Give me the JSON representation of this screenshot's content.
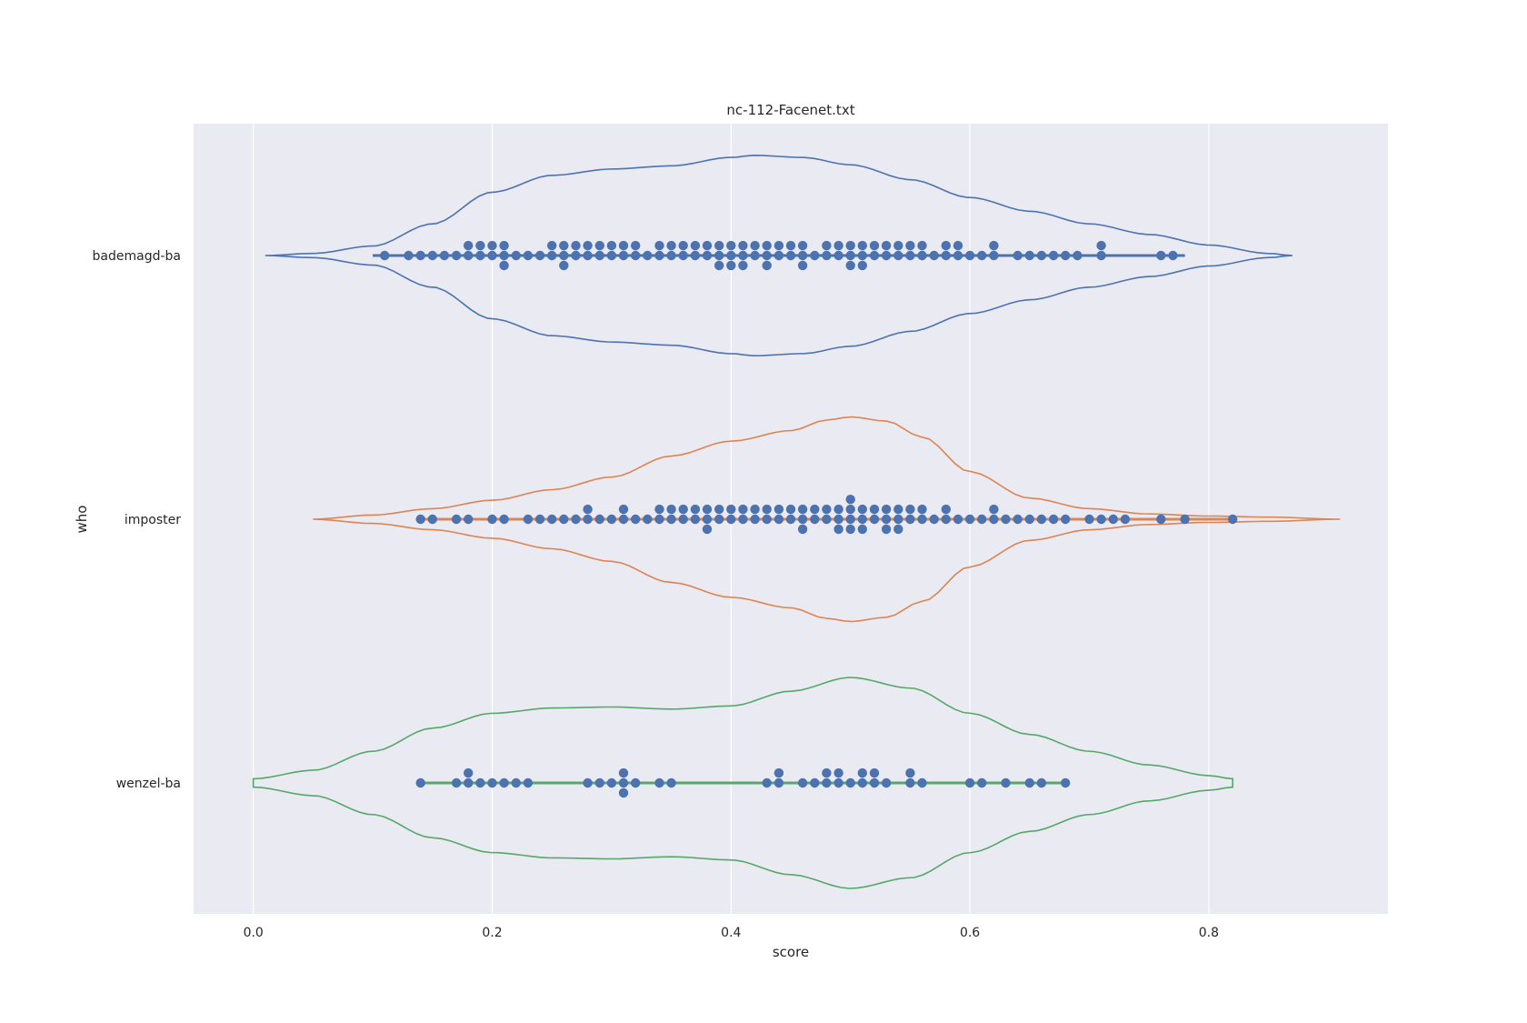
{
  "chart_data": {
    "type": "violin",
    "title": "nc-112-Facenet.txt",
    "xlabel": "score",
    "ylabel": "who",
    "xlim": [
      -0.05,
      0.95
    ],
    "xticks": [
      0.0,
      0.2,
      0.4,
      0.6,
      0.8
    ],
    "xtick_labels": [
      "0.0",
      "0.2",
      "0.4",
      "0.6",
      "0.8"
    ],
    "categories": [
      "bademagd-ba",
      "imposter",
      "wenzel-ba"
    ],
    "grid": true,
    "background": "#eaeaf2",
    "point_color": "#4c72b0",
    "series": [
      {
        "category": "bademagd-ba",
        "color": "#4c72b0",
        "extent": [
          0.01,
          0.87
        ],
        "half_width_profile": [
          [
            0.01,
            0.0
          ],
          [
            0.05,
            0.02
          ],
          [
            0.1,
            0.09
          ],
          [
            0.15,
            0.3
          ],
          [
            0.2,
            0.6
          ],
          [
            0.25,
            0.76
          ],
          [
            0.3,
            0.82
          ],
          [
            0.35,
            0.85
          ],
          [
            0.4,
            0.93
          ],
          [
            0.42,
            0.95
          ],
          [
            0.46,
            0.93
          ],
          [
            0.5,
            0.86
          ],
          [
            0.55,
            0.72
          ],
          [
            0.6,
            0.55
          ],
          [
            0.65,
            0.42
          ],
          [
            0.7,
            0.3
          ],
          [
            0.75,
            0.2
          ],
          [
            0.8,
            0.1
          ],
          [
            0.85,
            0.02
          ],
          [
            0.87,
            0.0
          ]
        ],
        "inner_box": [
          0.1,
          0.78
        ],
        "points": [
          0.11,
          0.13,
          0.14,
          0.15,
          0.16,
          0.17,
          0.18,
          0.18,
          0.19,
          0.19,
          0.2,
          0.2,
          0.21,
          0.21,
          0.21,
          0.22,
          0.23,
          0.24,
          0.25,
          0.25,
          0.26,
          0.26,
          0.26,
          0.27,
          0.27,
          0.28,
          0.28,
          0.29,
          0.29,
          0.3,
          0.3,
          0.31,
          0.31,
          0.32,
          0.32,
          0.33,
          0.34,
          0.34,
          0.35,
          0.35,
          0.36,
          0.36,
          0.37,
          0.37,
          0.38,
          0.38,
          0.39,
          0.39,
          0.39,
          0.4,
          0.4,
          0.4,
          0.41,
          0.41,
          0.41,
          0.42,
          0.42,
          0.43,
          0.43,
          0.43,
          0.44,
          0.44,
          0.45,
          0.45,
          0.46,
          0.46,
          0.46,
          0.47,
          0.48,
          0.48,
          0.49,
          0.49,
          0.5,
          0.5,
          0.5,
          0.51,
          0.51,
          0.51,
          0.52,
          0.52,
          0.53,
          0.53,
          0.54,
          0.54,
          0.55,
          0.55,
          0.56,
          0.56,
          0.57,
          0.58,
          0.58,
          0.59,
          0.59,
          0.6,
          0.61,
          0.62,
          0.62,
          0.64,
          0.65,
          0.66,
          0.67,
          0.68,
          0.69,
          0.71,
          0.71,
          0.76,
          0.77
        ]
      },
      {
        "category": "imposter",
        "color": "#dd8452",
        "extent": [
          0.05,
          0.91
        ],
        "half_width_profile": [
          [
            0.05,
            0.0
          ],
          [
            0.1,
            0.04
          ],
          [
            0.15,
            0.1
          ],
          [
            0.2,
            0.18
          ],
          [
            0.25,
            0.28
          ],
          [
            0.3,
            0.4
          ],
          [
            0.35,
            0.6
          ],
          [
            0.4,
            0.74
          ],
          [
            0.45,
            0.84
          ],
          [
            0.48,
            0.94
          ],
          [
            0.5,
            0.97
          ],
          [
            0.53,
            0.93
          ],
          [
            0.56,
            0.78
          ],
          [
            0.6,
            0.45
          ],
          [
            0.65,
            0.2
          ],
          [
            0.7,
            0.1
          ],
          [
            0.75,
            0.05
          ],
          [
            0.8,
            0.03
          ],
          [
            0.85,
            0.02
          ],
          [
            0.91,
            0.0
          ]
        ],
        "inner_box": [
          0.14,
          0.82
        ],
        "points": [
          0.14,
          0.15,
          0.17,
          0.18,
          0.2,
          0.21,
          0.23,
          0.24,
          0.25,
          0.26,
          0.27,
          0.28,
          0.28,
          0.29,
          0.3,
          0.31,
          0.31,
          0.32,
          0.33,
          0.34,
          0.34,
          0.35,
          0.35,
          0.36,
          0.36,
          0.37,
          0.37,
          0.38,
          0.38,
          0.38,
          0.39,
          0.39,
          0.4,
          0.4,
          0.41,
          0.41,
          0.42,
          0.42,
          0.43,
          0.43,
          0.44,
          0.44,
          0.45,
          0.45,
          0.46,
          0.46,
          0.46,
          0.47,
          0.47,
          0.48,
          0.48,
          0.49,
          0.49,
          0.49,
          0.5,
          0.5,
          0.5,
          0.5,
          0.51,
          0.51,
          0.51,
          0.52,
          0.52,
          0.53,
          0.53,
          0.53,
          0.54,
          0.54,
          0.54,
          0.55,
          0.55,
          0.56,
          0.56,
          0.57,
          0.58,
          0.58,
          0.59,
          0.6,
          0.61,
          0.62,
          0.62,
          0.63,
          0.64,
          0.65,
          0.66,
          0.67,
          0.68,
          0.7,
          0.71,
          0.72,
          0.73,
          0.76,
          0.78,
          0.82
        ]
      },
      {
        "category": "wenzel-ba",
        "color": "#55a868",
        "extent": [
          0.0,
          0.82
        ],
        "half_width_profile": [
          [
            0.0,
            0.04
          ],
          [
            0.05,
            0.12
          ],
          [
            0.1,
            0.3
          ],
          [
            0.15,
            0.52
          ],
          [
            0.2,
            0.66
          ],
          [
            0.25,
            0.71
          ],
          [
            0.3,
            0.72
          ],
          [
            0.35,
            0.7
          ],
          [
            0.4,
            0.73
          ],
          [
            0.45,
            0.87
          ],
          [
            0.5,
            1.0
          ],
          [
            0.55,
            0.9
          ],
          [
            0.6,
            0.66
          ],
          [
            0.65,
            0.46
          ],
          [
            0.7,
            0.3
          ],
          [
            0.75,
            0.17
          ],
          [
            0.8,
            0.07
          ],
          [
            0.82,
            0.04
          ]
        ],
        "inner_box": [
          0.14,
          0.68
        ],
        "points": [
          0.14,
          0.17,
          0.18,
          0.18,
          0.19,
          0.2,
          0.21,
          0.22,
          0.23,
          0.28,
          0.29,
          0.3,
          0.31,
          0.31,
          0.31,
          0.32,
          0.34,
          0.35,
          0.43,
          0.44,
          0.44,
          0.46,
          0.47,
          0.48,
          0.48,
          0.49,
          0.49,
          0.5,
          0.51,
          0.51,
          0.52,
          0.52,
          0.53,
          0.55,
          0.55,
          0.56,
          0.6,
          0.61,
          0.63,
          0.65,
          0.66,
          0.68
        ]
      }
    ]
  }
}
